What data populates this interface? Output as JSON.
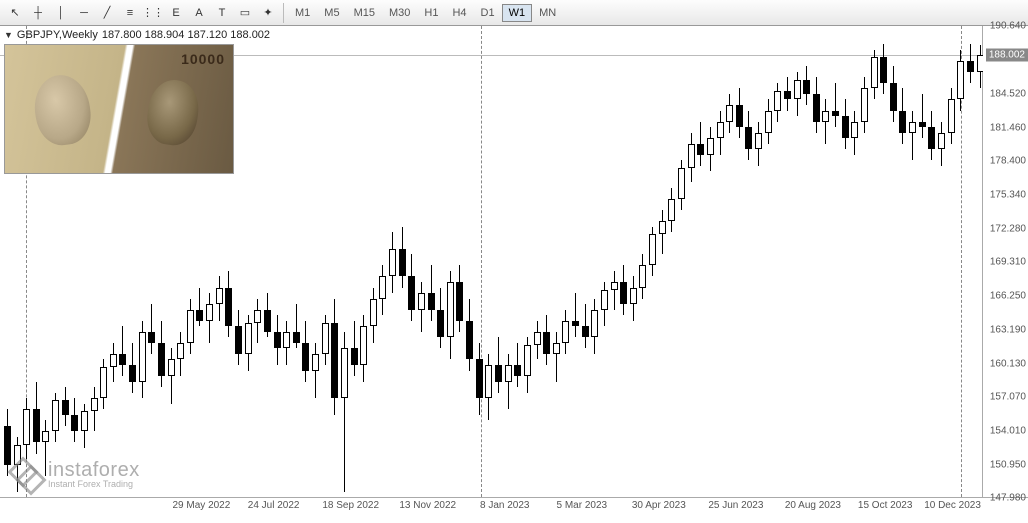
{
  "toolbar": {
    "tools": [
      {
        "name": "cursor",
        "glyph": "↖"
      },
      {
        "name": "crosshair",
        "glyph": "┼"
      },
      {
        "name": "vline",
        "glyph": "│"
      },
      {
        "name": "hline",
        "glyph": "─"
      },
      {
        "name": "trendline",
        "glyph": "╱"
      },
      {
        "name": "channel",
        "glyph": "≡"
      },
      {
        "name": "fibo",
        "glyph": "⋮⋮"
      },
      {
        "name": "text-sub",
        "glyph": "E"
      },
      {
        "name": "text",
        "glyph": "A"
      },
      {
        "name": "text-edit",
        "glyph": "T"
      },
      {
        "name": "shapes",
        "glyph": "▭"
      },
      {
        "name": "objects",
        "glyph": "✦"
      }
    ],
    "timeframes": [
      {
        "label": "M1",
        "active": false
      },
      {
        "label": "M5",
        "active": false
      },
      {
        "label": "M15",
        "active": false
      },
      {
        "label": "M30",
        "active": false
      },
      {
        "label": "H1",
        "active": false
      },
      {
        "label": "H4",
        "active": false
      },
      {
        "label": "D1",
        "active": false
      },
      {
        "label": "W1",
        "active": true
      },
      {
        "label": "MN",
        "active": false
      }
    ]
  },
  "chart": {
    "symbol_label": "GBPJPY,Weekly",
    "ohlc": "187.800 188.904 187.120 188.002",
    "current_price": "188.002",
    "y_min": 147.98,
    "y_max": 190.64,
    "y_ticks": [
      190.64,
      188.002,
      184.52,
      181.46,
      178.4,
      175.34,
      172.28,
      169.31,
      166.25,
      163.19,
      160.13,
      157.07,
      154.01,
      150.95,
      147.98
    ],
    "x_labels": [
      {
        "x": 0.205,
        "label": "29 May 2022"
      },
      {
        "x": 0.28,
        "label": "24 Jul 2022"
      },
      {
        "x": 0.36,
        "label": "18 Sep 2022"
      },
      {
        "x": 0.44,
        "label": "13 Nov 2022"
      },
      {
        "x": 0.52,
        "label": "8 Jan 2023"
      },
      {
        "x": 0.6,
        "label": "5 Mar 2023"
      },
      {
        "x": 0.68,
        "label": "30 Apr 2023"
      },
      {
        "x": 0.76,
        "label": "25 Jun 2023"
      },
      {
        "x": 0.84,
        "label": "20 Aug 2023"
      },
      {
        "x": 0.915,
        "label": "15 Oct 2023"
      },
      {
        "x": 0.985,
        "label": "10 Dec 2023"
      }
    ],
    "vlines_x": [
      0.023,
      0.495,
      0.994
    ],
    "hline_y": 188.002,
    "candles": [
      {
        "x": 0.003,
        "o": 154.5,
        "h": 156.0,
        "l": 150.0,
        "c": 151.0
      },
      {
        "x": 0.013,
        "o": 151.0,
        "h": 153.5,
        "l": 148.5,
        "c": 152.8
      },
      {
        "x": 0.023,
        "o": 152.8,
        "h": 157.0,
        "l": 151.5,
        "c": 156.0
      },
      {
        "x": 0.033,
        "o": 156.0,
        "h": 158.5,
        "l": 152.0,
        "c": 153.0
      },
      {
        "x": 0.043,
        "o": 153.0,
        "h": 155.0,
        "l": 150.0,
        "c": 154.0
      },
      {
        "x": 0.053,
        "o": 154.0,
        "h": 157.5,
        "l": 153.0,
        "c": 156.8
      },
      {
        "x": 0.063,
        "o": 156.8,
        "h": 158.0,
        "l": 154.5,
        "c": 155.5
      },
      {
        "x": 0.073,
        "o": 155.5,
        "h": 157.0,
        "l": 153.0,
        "c": 154.0
      },
      {
        "x": 0.083,
        "o": 154.0,
        "h": 156.5,
        "l": 152.5,
        "c": 155.8
      },
      {
        "x": 0.093,
        "o": 155.8,
        "h": 158.0,
        "l": 154.0,
        "c": 157.0
      },
      {
        "x": 0.103,
        "o": 157.0,
        "h": 160.5,
        "l": 156.0,
        "c": 159.8
      },
      {
        "x": 0.113,
        "o": 159.8,
        "h": 162.0,
        "l": 158.5,
        "c": 161.0
      },
      {
        "x": 0.123,
        "o": 161.0,
        "h": 163.5,
        "l": 159.0,
        "c": 160.0
      },
      {
        "x": 0.133,
        "o": 160.0,
        "h": 162.0,
        "l": 157.5,
        "c": 158.5
      },
      {
        "x": 0.143,
        "o": 158.5,
        "h": 164.0,
        "l": 157.0,
        "c": 163.0
      },
      {
        "x": 0.153,
        "o": 163.0,
        "h": 165.5,
        "l": 161.0,
        "c": 162.0
      },
      {
        "x": 0.163,
        "o": 162.0,
        "h": 164.0,
        "l": 158.0,
        "c": 159.0
      },
      {
        "x": 0.173,
        "o": 159.0,
        "h": 161.5,
        "l": 156.5,
        "c": 160.5
      },
      {
        "x": 0.183,
        "o": 160.5,
        "h": 163.0,
        "l": 159.0,
        "c": 162.0
      },
      {
        "x": 0.193,
        "o": 162.0,
        "h": 166.0,
        "l": 161.0,
        "c": 165.0
      },
      {
        "x": 0.203,
        "o": 165.0,
        "h": 167.0,
        "l": 163.5,
        "c": 164.0
      },
      {
        "x": 0.213,
        "o": 164.0,
        "h": 166.5,
        "l": 162.0,
        "c": 165.5
      },
      {
        "x": 0.223,
        "o": 165.5,
        "h": 168.0,
        "l": 164.0,
        "c": 167.0
      },
      {
        "x": 0.233,
        "o": 167.0,
        "h": 168.5,
        "l": 162.5,
        "c": 163.5
      },
      {
        "x": 0.243,
        "o": 163.5,
        "h": 165.0,
        "l": 160.0,
        "c": 161.0
      },
      {
        "x": 0.253,
        "o": 161.0,
        "h": 164.5,
        "l": 159.5,
        "c": 163.8
      },
      {
        "x": 0.263,
        "o": 163.8,
        "h": 166.0,
        "l": 162.0,
        "c": 165.0
      },
      {
        "x": 0.273,
        "o": 165.0,
        "h": 166.5,
        "l": 162.5,
        "c": 163.0
      },
      {
        "x": 0.283,
        "o": 163.0,
        "h": 164.5,
        "l": 160.0,
        "c": 161.5
      },
      {
        "x": 0.293,
        "o": 161.5,
        "h": 164.0,
        "l": 160.0,
        "c": 163.0
      },
      {
        "x": 0.303,
        "o": 163.0,
        "h": 165.5,
        "l": 161.5,
        "c": 162.0
      },
      {
        "x": 0.313,
        "o": 162.0,
        "h": 164.0,
        "l": 158.5,
        "c": 159.5
      },
      {
        "x": 0.323,
        "o": 159.5,
        "h": 162.0,
        "l": 157.0,
        "c": 161.0
      },
      {
        "x": 0.333,
        "o": 161.0,
        "h": 164.5,
        "l": 160.0,
        "c": 163.8
      },
      {
        "x": 0.343,
        "o": 163.8,
        "h": 166.0,
        "l": 155.5,
        "c": 157.0
      },
      {
        "x": 0.353,
        "o": 157.0,
        "h": 163.0,
        "l": 148.5,
        "c": 161.5
      },
      {
        "x": 0.363,
        "o": 161.5,
        "h": 164.0,
        "l": 159.0,
        "c": 160.0
      },
      {
        "x": 0.373,
        "o": 160.0,
        "h": 164.5,
        "l": 158.5,
        "c": 163.5
      },
      {
        "x": 0.383,
        "o": 163.5,
        "h": 167.0,
        "l": 162.0,
        "c": 166.0
      },
      {
        "x": 0.393,
        "o": 166.0,
        "h": 169.0,
        "l": 164.5,
        "c": 168.0
      },
      {
        "x": 0.403,
        "o": 168.0,
        "h": 172.0,
        "l": 166.5,
        "c": 170.5
      },
      {
        "x": 0.413,
        "o": 170.5,
        "h": 172.5,
        "l": 167.0,
        "c": 168.0
      },
      {
        "x": 0.423,
        "o": 168.0,
        "h": 170.0,
        "l": 164.0,
        "c": 165.0
      },
      {
        "x": 0.433,
        "o": 165.0,
        "h": 167.5,
        "l": 163.0,
        "c": 166.5
      },
      {
        "x": 0.443,
        "o": 166.5,
        "h": 169.0,
        "l": 164.0,
        "c": 165.0
      },
      {
        "x": 0.453,
        "o": 165.0,
        "h": 167.0,
        "l": 161.5,
        "c": 162.5
      },
      {
        "x": 0.463,
        "o": 162.5,
        "h": 168.5,
        "l": 160.5,
        "c": 167.5
      },
      {
        "x": 0.473,
        "o": 167.5,
        "h": 169.0,
        "l": 163.0,
        "c": 164.0
      },
      {
        "x": 0.483,
        "o": 164.0,
        "h": 166.0,
        "l": 159.5,
        "c": 160.5
      },
      {
        "x": 0.493,
        "o": 160.5,
        "h": 162.0,
        "l": 155.5,
        "c": 157.0
      },
      {
        "x": 0.503,
        "o": 157.0,
        "h": 161.0,
        "l": 155.0,
        "c": 160.0
      },
      {
        "x": 0.513,
        "o": 160.0,
        "h": 162.5,
        "l": 157.5,
        "c": 158.5
      },
      {
        "x": 0.523,
        "o": 158.5,
        "h": 161.0,
        "l": 156.0,
        "c": 160.0
      },
      {
        "x": 0.533,
        "o": 160.0,
        "h": 162.0,
        "l": 158.0,
        "c": 159.0
      },
      {
        "x": 0.543,
        "o": 159.0,
        "h": 162.5,
        "l": 157.5,
        "c": 161.8
      },
      {
        "x": 0.553,
        "o": 161.8,
        "h": 164.0,
        "l": 160.5,
        "c": 163.0
      },
      {
        "x": 0.563,
        "o": 163.0,
        "h": 164.5,
        "l": 160.0,
        "c": 161.0
      },
      {
        "x": 0.573,
        "o": 161.0,
        "h": 163.0,
        "l": 158.5,
        "c": 162.0
      },
      {
        "x": 0.583,
        "o": 162.0,
        "h": 165.0,
        "l": 161.0,
        "c": 164.0
      },
      {
        "x": 0.593,
        "o": 164.0,
        "h": 166.5,
        "l": 162.5,
        "c": 163.5
      },
      {
        "x": 0.603,
        "o": 163.5,
        "h": 165.5,
        "l": 161.5,
        "c": 162.5
      },
      {
        "x": 0.613,
        "o": 162.5,
        "h": 166.0,
        "l": 161.0,
        "c": 165.0
      },
      {
        "x": 0.623,
        "o": 165.0,
        "h": 167.5,
        "l": 163.5,
        "c": 166.8
      },
      {
        "x": 0.633,
        "o": 166.8,
        "h": 168.5,
        "l": 165.0,
        "c": 167.5
      },
      {
        "x": 0.643,
        "o": 167.5,
        "h": 169.0,
        "l": 164.5,
        "c": 165.5
      },
      {
        "x": 0.653,
        "o": 165.5,
        "h": 168.0,
        "l": 164.0,
        "c": 167.0
      },
      {
        "x": 0.663,
        "o": 167.0,
        "h": 170.0,
        "l": 166.0,
        "c": 169.0
      },
      {
        "x": 0.673,
        "o": 169.0,
        "h": 172.5,
        "l": 168.0,
        "c": 171.8
      },
      {
        "x": 0.683,
        "o": 171.8,
        "h": 174.0,
        "l": 170.0,
        "c": 173.0
      },
      {
        "x": 0.693,
        "o": 173.0,
        "h": 176.0,
        "l": 172.0,
        "c": 175.0
      },
      {
        "x": 0.703,
        "o": 175.0,
        "h": 178.5,
        "l": 174.0,
        "c": 177.8
      },
      {
        "x": 0.713,
        "o": 177.8,
        "h": 181.0,
        "l": 176.5,
        "c": 180.0
      },
      {
        "x": 0.723,
        "o": 180.0,
        "h": 182.0,
        "l": 178.0,
        "c": 179.0
      },
      {
        "x": 0.733,
        "o": 179.0,
        "h": 181.5,
        "l": 177.5,
        "c": 180.5
      },
      {
        "x": 0.743,
        "o": 180.5,
        "h": 183.0,
        "l": 179.0,
        "c": 182.0
      },
      {
        "x": 0.753,
        "o": 182.0,
        "h": 184.5,
        "l": 181.0,
        "c": 183.5
      },
      {
        "x": 0.763,
        "o": 183.5,
        "h": 185.0,
        "l": 180.5,
        "c": 181.5
      },
      {
        "x": 0.773,
        "o": 181.5,
        "h": 183.0,
        "l": 178.5,
        "c": 179.5
      },
      {
        "x": 0.783,
        "o": 179.5,
        "h": 182.0,
        "l": 178.0,
        "c": 181.0
      },
      {
        "x": 0.793,
        "o": 181.0,
        "h": 184.0,
        "l": 180.0,
        "c": 183.0
      },
      {
        "x": 0.803,
        "o": 183.0,
        "h": 185.5,
        "l": 182.0,
        "c": 184.8
      },
      {
        "x": 0.813,
        "o": 184.8,
        "h": 186.0,
        "l": 183.0,
        "c": 184.0
      },
      {
        "x": 0.823,
        "o": 184.0,
        "h": 186.5,
        "l": 182.5,
        "c": 185.8
      },
      {
        "x": 0.833,
        "o": 185.8,
        "h": 187.0,
        "l": 183.5,
        "c": 184.5
      },
      {
        "x": 0.843,
        "o": 184.5,
        "h": 186.0,
        "l": 181.0,
        "c": 182.0
      },
      {
        "x": 0.853,
        "o": 182.0,
        "h": 184.0,
        "l": 180.0,
        "c": 183.0
      },
      {
        "x": 0.863,
        "o": 183.0,
        "h": 185.5,
        "l": 181.5,
        "c": 182.5
      },
      {
        "x": 0.873,
        "o": 182.5,
        "h": 184.0,
        "l": 179.5,
        "c": 180.5
      },
      {
        "x": 0.883,
        "o": 180.5,
        "h": 183.0,
        "l": 179.0,
        "c": 182.0
      },
      {
        "x": 0.893,
        "o": 182.0,
        "h": 186.0,
        "l": 181.0,
        "c": 185.0
      },
      {
        "x": 0.903,
        "o": 185.0,
        "h": 188.5,
        "l": 184.0,
        "c": 187.8
      },
      {
        "x": 0.913,
        "o": 187.8,
        "h": 189.0,
        "l": 184.5,
        "c": 185.5
      },
      {
        "x": 0.923,
        "o": 185.5,
        "h": 187.0,
        "l": 182.0,
        "c": 183.0
      },
      {
        "x": 0.933,
        "o": 183.0,
        "h": 185.0,
        "l": 180.0,
        "c": 181.0
      },
      {
        "x": 0.943,
        "o": 181.0,
        "h": 183.0,
        "l": 178.5,
        "c": 182.0
      },
      {
        "x": 0.953,
        "o": 182.0,
        "h": 184.5,
        "l": 180.5,
        "c": 181.5
      },
      {
        "x": 0.963,
        "o": 181.5,
        "h": 183.0,
        "l": 178.5,
        "c": 179.5
      },
      {
        "x": 0.973,
        "o": 179.5,
        "h": 182.0,
        "l": 178.0,
        "c": 181.0
      },
      {
        "x": 0.983,
        "o": 181.0,
        "h": 185.0,
        "l": 180.0,
        "c": 184.0
      },
      {
        "x": 0.993,
        "o": 184.0,
        "h": 188.5,
        "l": 183.0,
        "c": 187.5
      },
      {
        "x": 1.003,
        "o": 187.5,
        "h": 189.0,
        "l": 185.5,
        "c": 186.5
      },
      {
        "x": 1.013,
        "o": 186.5,
        "h": 188.9,
        "l": 185.0,
        "c": 188.0
      }
    ]
  },
  "overlay": {
    "yen_label": "10000"
  },
  "watermark": {
    "brand": "instaforex",
    "tagline": "Instant Forex Trading"
  }
}
